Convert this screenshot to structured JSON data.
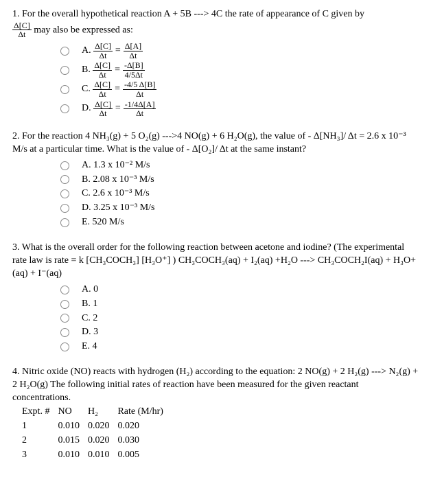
{
  "q1": {
    "stem_a": "1. For the overall hypothetical reaction A + 5B ---> 4C the rate of appearance of C given by",
    "stem_frac_num": "Δ[C]",
    "stem_frac_den": "Δt",
    "stem_b": " may also be expressed as:",
    "options": {
      "A": {
        "lhs_num": "Δ[C]",
        "lhs_den": "Δt",
        "rhs_num": "Δ[A]",
        "rhs_den": "Δt"
      },
      "B": {
        "lhs_num": "Δ[C]",
        "lhs_den": "Δt",
        "rhs_num": "-Δ[B]",
        "rhs_den": "4/5Δt"
      },
      "C": {
        "lhs_num": "Δ[C]",
        "lhs_den": "Δt",
        "rhs_num": "-4/5 Δ[B]",
        "rhs_den": "Δt"
      },
      "D": {
        "lhs_num": "Δ[C]",
        "lhs_den": "Δt",
        "rhs_num": "-1/4Δ[A]",
        "rhs_den": "Δt"
      }
    }
  },
  "q2": {
    "stem": "2. For the reaction 4 NH₃(g) + 5 O₂(g) --->4 NO(g) + 6 H₂O(g), the value of - Δ[NH₃]/ Δt = 2.6 x 10⁻³ M/s at a particular time. What is the value of - Δ[O₂]/ Δt at the same instant?",
    "A": "A. 1.3 x 10⁻² M/s",
    "B": "B. 2.08 x 10⁻³ M/s",
    "C": "C. 2.6 x 10⁻³ M/s",
    "D": "D. 3.25 x 10⁻³ M/s",
    "E": "E. 520 M/s"
  },
  "q3": {
    "stem": "3. What is the overall order for the following reaction between acetone and iodine? (The experimental rate law is rate = k [CH₃COCH₃] [H₃O⁺] ) CH₃COCH₃(aq) + I₂(aq) +H₂O ---> CH₃COCH₂I(aq) + H₃O+(aq) + I⁻(aq)",
    "A": "A. 0",
    "B": "B. 1",
    "C": "C. 2",
    "D": "D. 3",
    "E": "E. 4"
  },
  "q4": {
    "stem": "4. Nitric oxide (NO) reacts with hydrogen (H₂) according to the equation: 2 NO(g) + 2 H₂(g) ---> N₂(g) + 2 H₂O(g) The following initial rates of reaction have been measured for the given reactant concentrations.",
    "headers": [
      "Expt. #",
      "NO",
      "H₂",
      "Rate (M/hr)"
    ],
    "rows": [
      [
        "1",
        "0.010",
        "0.020",
        "0.020"
      ],
      [
        "2",
        "0.015",
        "0.020",
        "0.030"
      ],
      [
        "3",
        "0.010",
        "0.010",
        "0.005"
      ]
    ]
  }
}
